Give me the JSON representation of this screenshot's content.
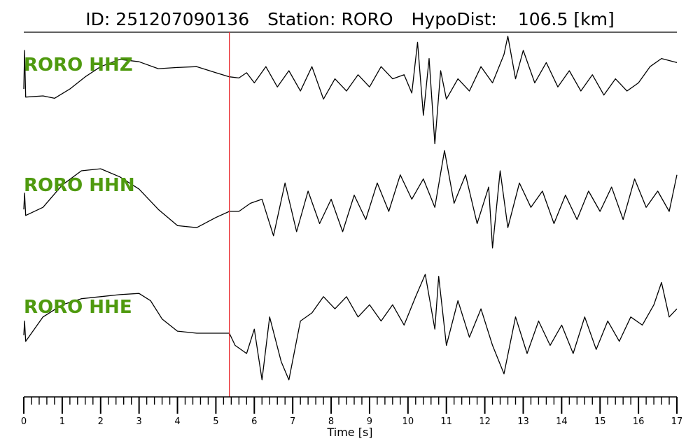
{
  "title": {
    "id_label": "ID:",
    "id_value": "251207090136",
    "station_label": "Station:",
    "station_value": "RORO",
    "dist_label": "HypoDist:",
    "dist_value": "106.5",
    "dist_unit": "[km]"
  },
  "chart_data": {
    "type": "line",
    "xlabel": "Time [s]",
    "xlim": [
      0,
      17
    ],
    "x_ticks": [
      "0",
      "1",
      "2",
      "3",
      "4",
      "5",
      "6",
      "7",
      "8",
      "9",
      "10",
      "11",
      "12",
      "13",
      "14",
      "15",
      "16",
      "17"
    ],
    "minor_tick_step": 0.2,
    "p_pick_time": 5.35,
    "colors": {
      "pick_line": "#e8262a",
      "channel_label": "#4f9a0f",
      "trace": "#000000"
    },
    "series": [
      {
        "name": "RORO HHZ",
        "values": [
          [
            0.0,
            0.05
          ],
          [
            0.02,
            1.0
          ],
          [
            0.05,
            -0.15
          ],
          [
            0.5,
            -0.12
          ],
          [
            0.8,
            -0.18
          ],
          [
            1.2,
            0.05
          ],
          [
            1.6,
            0.35
          ],
          [
            2.0,
            0.6
          ],
          [
            2.5,
            0.78
          ],
          [
            3.0,
            0.72
          ],
          [
            3.5,
            0.55
          ],
          [
            4.0,
            0.58
          ],
          [
            4.5,
            0.6
          ],
          [
            5.0,
            0.45
          ],
          [
            5.35,
            0.35
          ],
          [
            5.6,
            0.32
          ],
          [
            5.8,
            0.45
          ],
          [
            6.0,
            0.2
          ],
          [
            6.3,
            0.6
          ],
          [
            6.6,
            0.1
          ],
          [
            6.9,
            0.5
          ],
          [
            7.2,
            0.0
          ],
          [
            7.5,
            0.6
          ],
          [
            7.8,
            -0.2
          ],
          [
            8.1,
            0.3
          ],
          [
            8.4,
            0.0
          ],
          [
            8.7,
            0.4
          ],
          [
            9.0,
            0.1
          ],
          [
            9.3,
            0.6
          ],
          [
            9.6,
            0.3
          ],
          [
            9.9,
            0.4
          ],
          [
            10.1,
            -0.05
          ],
          [
            10.25,
            1.2
          ],
          [
            10.4,
            -0.6
          ],
          [
            10.55,
            0.8
          ],
          [
            10.7,
            -1.3
          ],
          [
            10.85,
            0.5
          ],
          [
            11.0,
            -0.2
          ],
          [
            11.3,
            0.3
          ],
          [
            11.6,
            0.0
          ],
          [
            11.9,
            0.6
          ],
          [
            12.2,
            0.2
          ],
          [
            12.5,
            0.9
          ],
          [
            12.6,
            1.35
          ],
          [
            12.8,
            0.3
          ],
          [
            13.0,
            1.0
          ],
          [
            13.3,
            0.2
          ],
          [
            13.6,
            0.7
          ],
          [
            13.9,
            0.1
          ],
          [
            14.2,
            0.5
          ],
          [
            14.5,
            0.0
          ],
          [
            14.8,
            0.4
          ],
          [
            15.1,
            -0.1
          ],
          [
            15.4,
            0.3
          ],
          [
            15.7,
            0.0
          ],
          [
            16.0,
            0.2
          ],
          [
            16.3,
            0.6
          ],
          [
            16.6,
            0.8
          ],
          [
            17.0,
            0.7
          ]
        ]
      },
      {
        "name": "RORO HHN",
        "values": [
          [
            0.0,
            0.05
          ],
          [
            0.02,
            0.45
          ],
          [
            0.05,
            -0.1
          ],
          [
            0.5,
            0.1
          ],
          [
            1.0,
            0.65
          ],
          [
            1.5,
            1.0
          ],
          [
            2.0,
            1.05
          ],
          [
            2.5,
            0.85
          ],
          [
            3.0,
            0.55
          ],
          [
            3.5,
            0.05
          ],
          [
            4.0,
            -0.35
          ],
          [
            4.5,
            -0.4
          ],
          [
            5.0,
            -0.15
          ],
          [
            5.35,
            0.0
          ],
          [
            5.6,
            0.0
          ],
          [
            5.9,
            0.2
          ],
          [
            6.2,
            0.3
          ],
          [
            6.5,
            -0.6
          ],
          [
            6.8,
            0.7
          ],
          [
            7.1,
            -0.5
          ],
          [
            7.4,
            0.5
          ],
          [
            7.7,
            -0.3
          ],
          [
            8.0,
            0.3
          ],
          [
            8.3,
            -0.5
          ],
          [
            8.6,
            0.4
          ],
          [
            8.9,
            -0.2
          ],
          [
            9.2,
            0.7
          ],
          [
            9.5,
            0.0
          ],
          [
            9.8,
            0.9
          ],
          [
            10.1,
            0.3
          ],
          [
            10.4,
            0.8
          ],
          [
            10.7,
            0.1
          ],
          [
            10.95,
            1.5
          ],
          [
            11.2,
            0.2
          ],
          [
            11.5,
            0.9
          ],
          [
            11.8,
            -0.3
          ],
          [
            12.1,
            0.6
          ],
          [
            12.2,
            -0.9
          ],
          [
            12.4,
            1.0
          ],
          [
            12.6,
            -0.4
          ],
          [
            12.9,
            0.7
          ],
          [
            13.2,
            0.1
          ],
          [
            13.5,
            0.5
          ],
          [
            13.8,
            -0.3
          ],
          [
            14.1,
            0.4
          ],
          [
            14.4,
            -0.2
          ],
          [
            14.7,
            0.5
          ],
          [
            15.0,
            0.0
          ],
          [
            15.3,
            0.6
          ],
          [
            15.6,
            -0.2
          ],
          [
            15.9,
            0.8
          ],
          [
            16.2,
            0.1
          ],
          [
            16.5,
            0.5
          ],
          [
            16.8,
            0.0
          ],
          [
            17.0,
            0.9
          ]
        ]
      },
      {
        "name": "RORO HHE",
        "values": [
          [
            0.0,
            -0.05
          ],
          [
            0.02,
            0.3
          ],
          [
            0.05,
            -0.2
          ],
          [
            0.5,
            0.4
          ],
          [
            1.0,
            0.7
          ],
          [
            1.5,
            0.85
          ],
          [
            2.0,
            0.9
          ],
          [
            2.5,
            0.95
          ],
          [
            3.0,
            0.98
          ],
          [
            3.3,
            0.8
          ],
          [
            3.6,
            0.35
          ],
          [
            4.0,
            0.05
          ],
          [
            4.5,
            0.0
          ],
          [
            5.0,
            0.0
          ],
          [
            5.35,
            0.0
          ],
          [
            5.5,
            -0.3
          ],
          [
            5.8,
            -0.5
          ],
          [
            6.0,
            0.1
          ],
          [
            6.2,
            -1.15
          ],
          [
            6.4,
            0.4
          ],
          [
            6.7,
            -0.7
          ],
          [
            6.9,
            -1.15
          ],
          [
            7.2,
            0.3
          ],
          [
            7.5,
            0.5
          ],
          [
            7.8,
            0.9
          ],
          [
            8.1,
            0.6
          ],
          [
            8.4,
            0.9
          ],
          [
            8.7,
            0.4
          ],
          [
            9.0,
            0.7
          ],
          [
            9.3,
            0.3
          ],
          [
            9.6,
            0.7
          ],
          [
            9.9,
            0.2
          ],
          [
            10.2,
            0.9
          ],
          [
            10.45,
            1.45
          ],
          [
            10.7,
            0.1
          ],
          [
            10.8,
            1.4
          ],
          [
            11.0,
            -0.3
          ],
          [
            11.3,
            0.8
          ],
          [
            11.6,
            -0.1
          ],
          [
            11.9,
            0.6
          ],
          [
            12.2,
            -0.3
          ],
          [
            12.5,
            -1.0
          ],
          [
            12.8,
            0.4
          ],
          [
            13.1,
            -0.5
          ],
          [
            13.4,
            0.3
          ],
          [
            13.7,
            -0.3
          ],
          [
            14.0,
            0.2
          ],
          [
            14.3,
            -0.5
          ],
          [
            14.6,
            0.4
          ],
          [
            14.9,
            -0.4
          ],
          [
            15.2,
            0.3
          ],
          [
            15.5,
            -0.2
          ],
          [
            15.8,
            0.4
          ],
          [
            16.1,
            0.2
          ],
          [
            16.4,
            0.7
          ],
          [
            16.6,
            1.25
          ],
          [
            16.8,
            0.4
          ],
          [
            17.0,
            0.6
          ]
        ]
      }
    ]
  }
}
